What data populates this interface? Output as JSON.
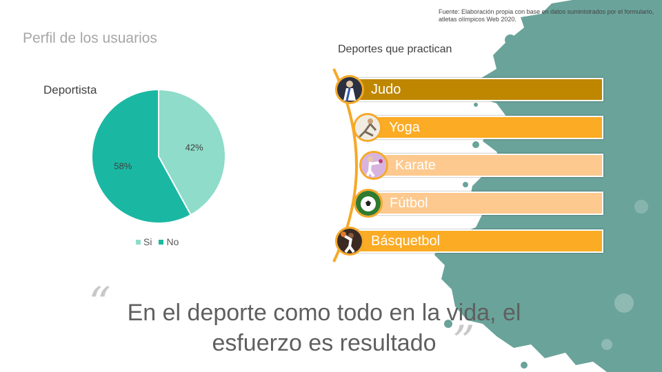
{
  "source_note": "Fuente: Elaboración propia con base en datos suministrados por el formulario, atletas olímpicos Web 2020.",
  "profile": {
    "title": "Perfil de los usuarios",
    "pie_title": "Deportista",
    "legend": [
      {
        "label": "Si",
        "color": "#8edcc9"
      },
      {
        "label": "No",
        "color": "#1ab8a3"
      }
    ]
  },
  "chart_data": {
    "type": "pie",
    "title": "Deportista",
    "categories": [
      "Si",
      "No"
    ],
    "values": [
      42,
      58
    ],
    "labels": [
      "42%",
      "58%"
    ],
    "colors": [
      "#8edcc9",
      "#1ab8a3"
    ],
    "legend_position": "bottom"
  },
  "sports": {
    "title": "Deportes que practican",
    "items": [
      {
        "label": "Judo",
        "color": "#bf8700",
        "icon": "judo-icon"
      },
      {
        "label": "Yoga",
        "color": "#fbab24",
        "icon": "yoga-icon"
      },
      {
        "label": "Karate",
        "color": "#fdc98e",
        "icon": "karate-icon"
      },
      {
        "label": "Fútbol",
        "color": "#fdc98e",
        "icon": "soccer-ball-icon"
      },
      {
        "label": "Básquetbol",
        "color": "#fbab24",
        "icon": "basketball-icon"
      }
    ]
  },
  "quote": {
    "open_mark": "“",
    "close_mark": "”",
    "text_line1": "En el deporte como todo en la vida, el",
    "text_line2": "esfuerzo es resultado"
  }
}
